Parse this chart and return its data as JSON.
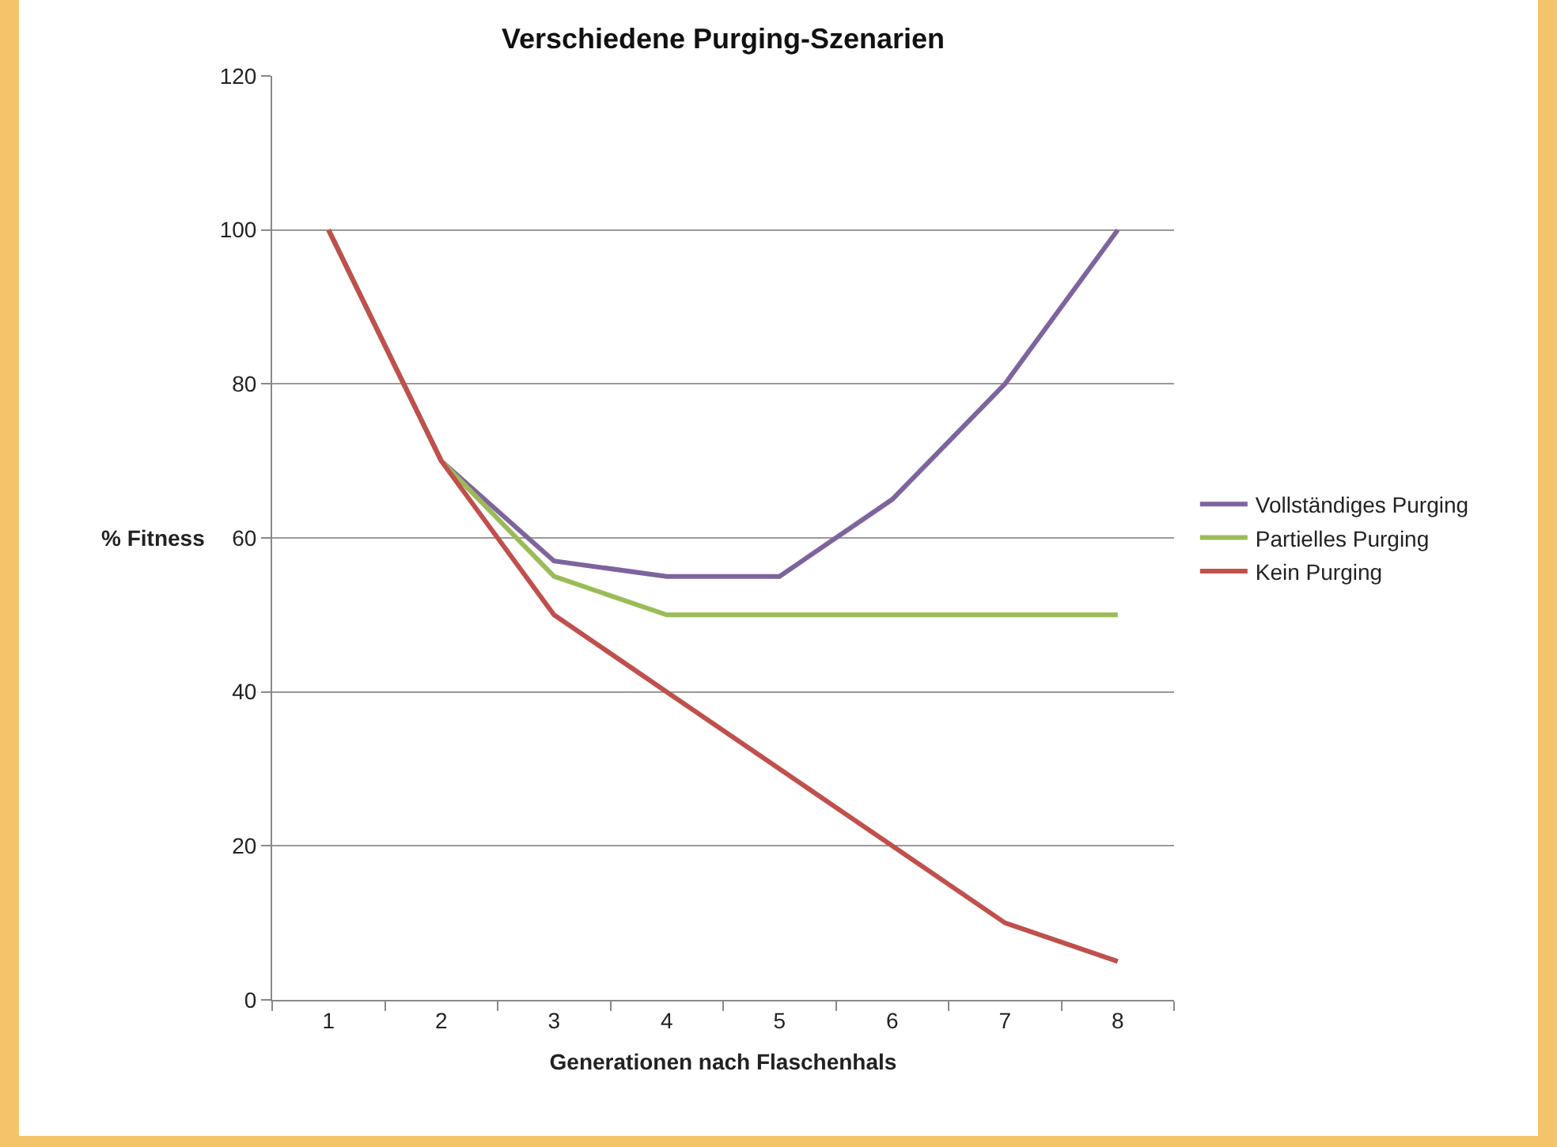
{
  "chart_data": {
    "type": "line",
    "title": "Verschiedene Purging-Szenarien",
    "xlabel": "Generationen nach Flaschenhals",
    "ylabel": "% Fitness",
    "categories": [
      "1",
      "2",
      "3",
      "4",
      "5",
      "6",
      "7",
      "8"
    ],
    "series": [
      {
        "name": "Vollständiges Purging",
        "color": "#7e649e",
        "values": [
          100,
          70,
          57,
          55,
          55,
          65,
          80,
          100
        ]
      },
      {
        "name": "Partielles Purging",
        "color": "#9bbb59",
        "values": [
          100,
          70,
          55,
          50,
          50,
          50,
          50,
          50
        ]
      },
      {
        "name": "Kein Purging",
        "color": "#c0504d",
        "values": [
          100,
          70,
          50,
          40,
          30,
          20,
          10,
          5
        ]
      }
    ],
    "ylim": [
      0,
      120
    ],
    "yticks": [
      0,
      20,
      40,
      60,
      80,
      100,
      120
    ],
    "grid": "y",
    "legend": "right",
    "marker": "none",
    "line_style": "solid"
  }
}
